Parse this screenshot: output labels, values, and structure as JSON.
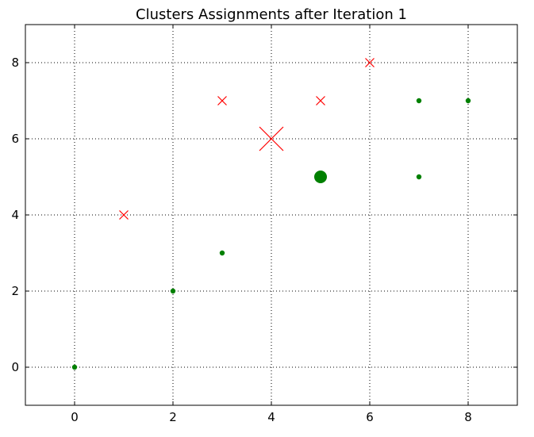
{
  "chart_data": {
    "type": "scatter",
    "title": "Clusters Assignments after Iteration 1",
    "xlabel": "",
    "ylabel": "",
    "xlim": [
      -1,
      9
    ],
    "ylim": [
      -1,
      9
    ],
    "xticks": [
      0,
      2,
      4,
      6,
      8
    ],
    "yticks": [
      0,
      2,
      4,
      6,
      8
    ],
    "grid": true,
    "grid_style": "dotted",
    "series": [
      {
        "role": "points",
        "marker": "cross",
        "color": "#ff0000",
        "points": [
          {
            "x": 1,
            "y": 4
          },
          {
            "x": 3,
            "y": 7
          },
          {
            "x": 5,
            "y": 7
          },
          {
            "x": 6,
            "y": 8
          }
        ]
      },
      {
        "role": "centroid",
        "marker": "cross",
        "size": "large",
        "color": "#ff0000",
        "points": [
          {
            "x": 4,
            "y": 6
          }
        ]
      },
      {
        "role": "points",
        "marker": "dot",
        "color": "#008000",
        "points": [
          {
            "x": 0,
            "y": 0
          },
          {
            "x": 2,
            "y": 2
          },
          {
            "x": 3,
            "y": 3
          },
          {
            "x": 7,
            "y": 5
          },
          {
            "x": 7,
            "y": 7
          },
          {
            "x": 8,
            "y": 7
          }
        ]
      },
      {
        "role": "centroid",
        "marker": "dot",
        "size": "large",
        "color": "#008000",
        "points": [
          {
            "x": 5,
            "y": 5
          }
        ]
      }
    ]
  }
}
